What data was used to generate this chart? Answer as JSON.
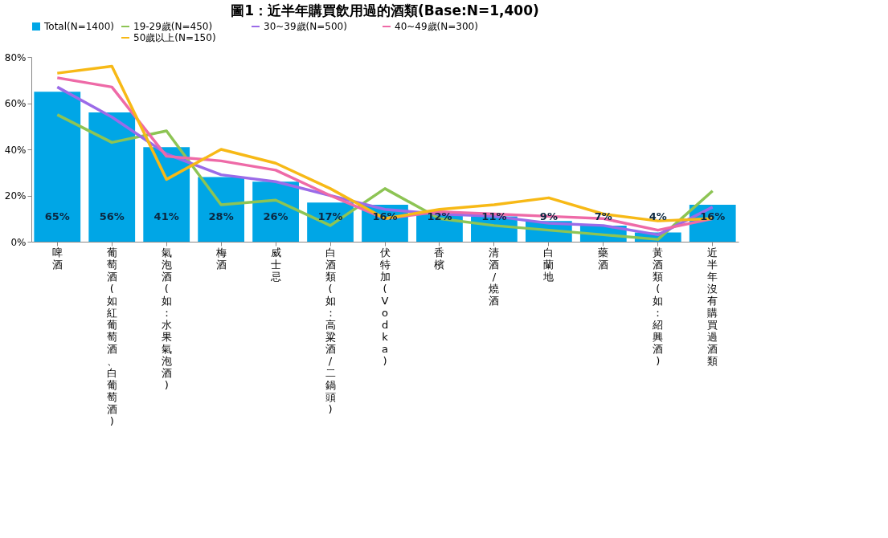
{
  "chart_data": {
    "type": "bar",
    "title": "圖1：近半年購買飲用過的酒類(Base:N=1,400)",
    "categories": [
      "啤酒",
      "葡萄酒(如紅葡萄酒、白葡萄酒)",
      "氣泡酒(如：水果氣泡酒)",
      "梅酒",
      "威士忌",
      "白酒類(如：高粱酒/二鍋頭)",
      "伏特加(Vodka)",
      "香檳",
      "清酒/燒酒",
      "白蘭地",
      "藥酒",
      "黃酒類(如：紹興酒)",
      "近半年沒有購買過酒類"
    ],
    "series": [
      {
        "name": "Total(N=1400)",
        "color": "#00a6e6",
        "values": [
          65,
          56,
          41,
          28,
          26,
          17,
          16,
          12,
          11,
          9,
          7,
          4,
          16
        ],
        "value_labels": [
          "65%",
          "56%",
          "41%",
          "28%",
          "26%",
          "17%",
          "16%",
          "12%",
          "11%",
          "9%",
          "7%",
          "4%",
          "16%"
        ]
      },
      {
        "name": "19-29歲(N=450)",
        "type": "line",
        "color": "#8dc454",
        "values": [
          55,
          43,
          48,
          16,
          18,
          7,
          23,
          10,
          7,
          5,
          3,
          1,
          22
        ]
      },
      {
        "name": "30~39歲(N=500)",
        "type": "line",
        "color": "#9b6be8",
        "values": [
          67,
          54,
          38,
          29,
          26,
          20,
          14,
          12,
          11,
          8,
          7,
          3,
          15
        ]
      },
      {
        "name": "40~49歲(N=300)",
        "type": "line",
        "color": "#ee6aa7",
        "values": [
          71,
          67,
          37,
          35,
          31,
          20,
          10,
          13,
          12,
          11,
          10,
          5,
          10
        ]
      },
      {
        "name": "50歲以上(N=150)",
        "type": "line",
        "color": "#f7b916",
        "values": [
          73,
          76,
          27,
          40,
          34,
          23,
          10,
          14,
          16,
          19,
          12,
          9,
          10
        ]
      }
    ],
    "ylim": [
      0,
      80
    ],
    "yticks": [
      {
        "value": 0,
        "label": "0%"
      },
      {
        "value": 20,
        "label": "20%"
      },
      {
        "value": 40,
        "label": "40%"
      },
      {
        "value": 60,
        "label": "60%"
      },
      {
        "value": 80,
        "label": "80%"
      }
    ],
    "legend": "top",
    "grid": false
  }
}
